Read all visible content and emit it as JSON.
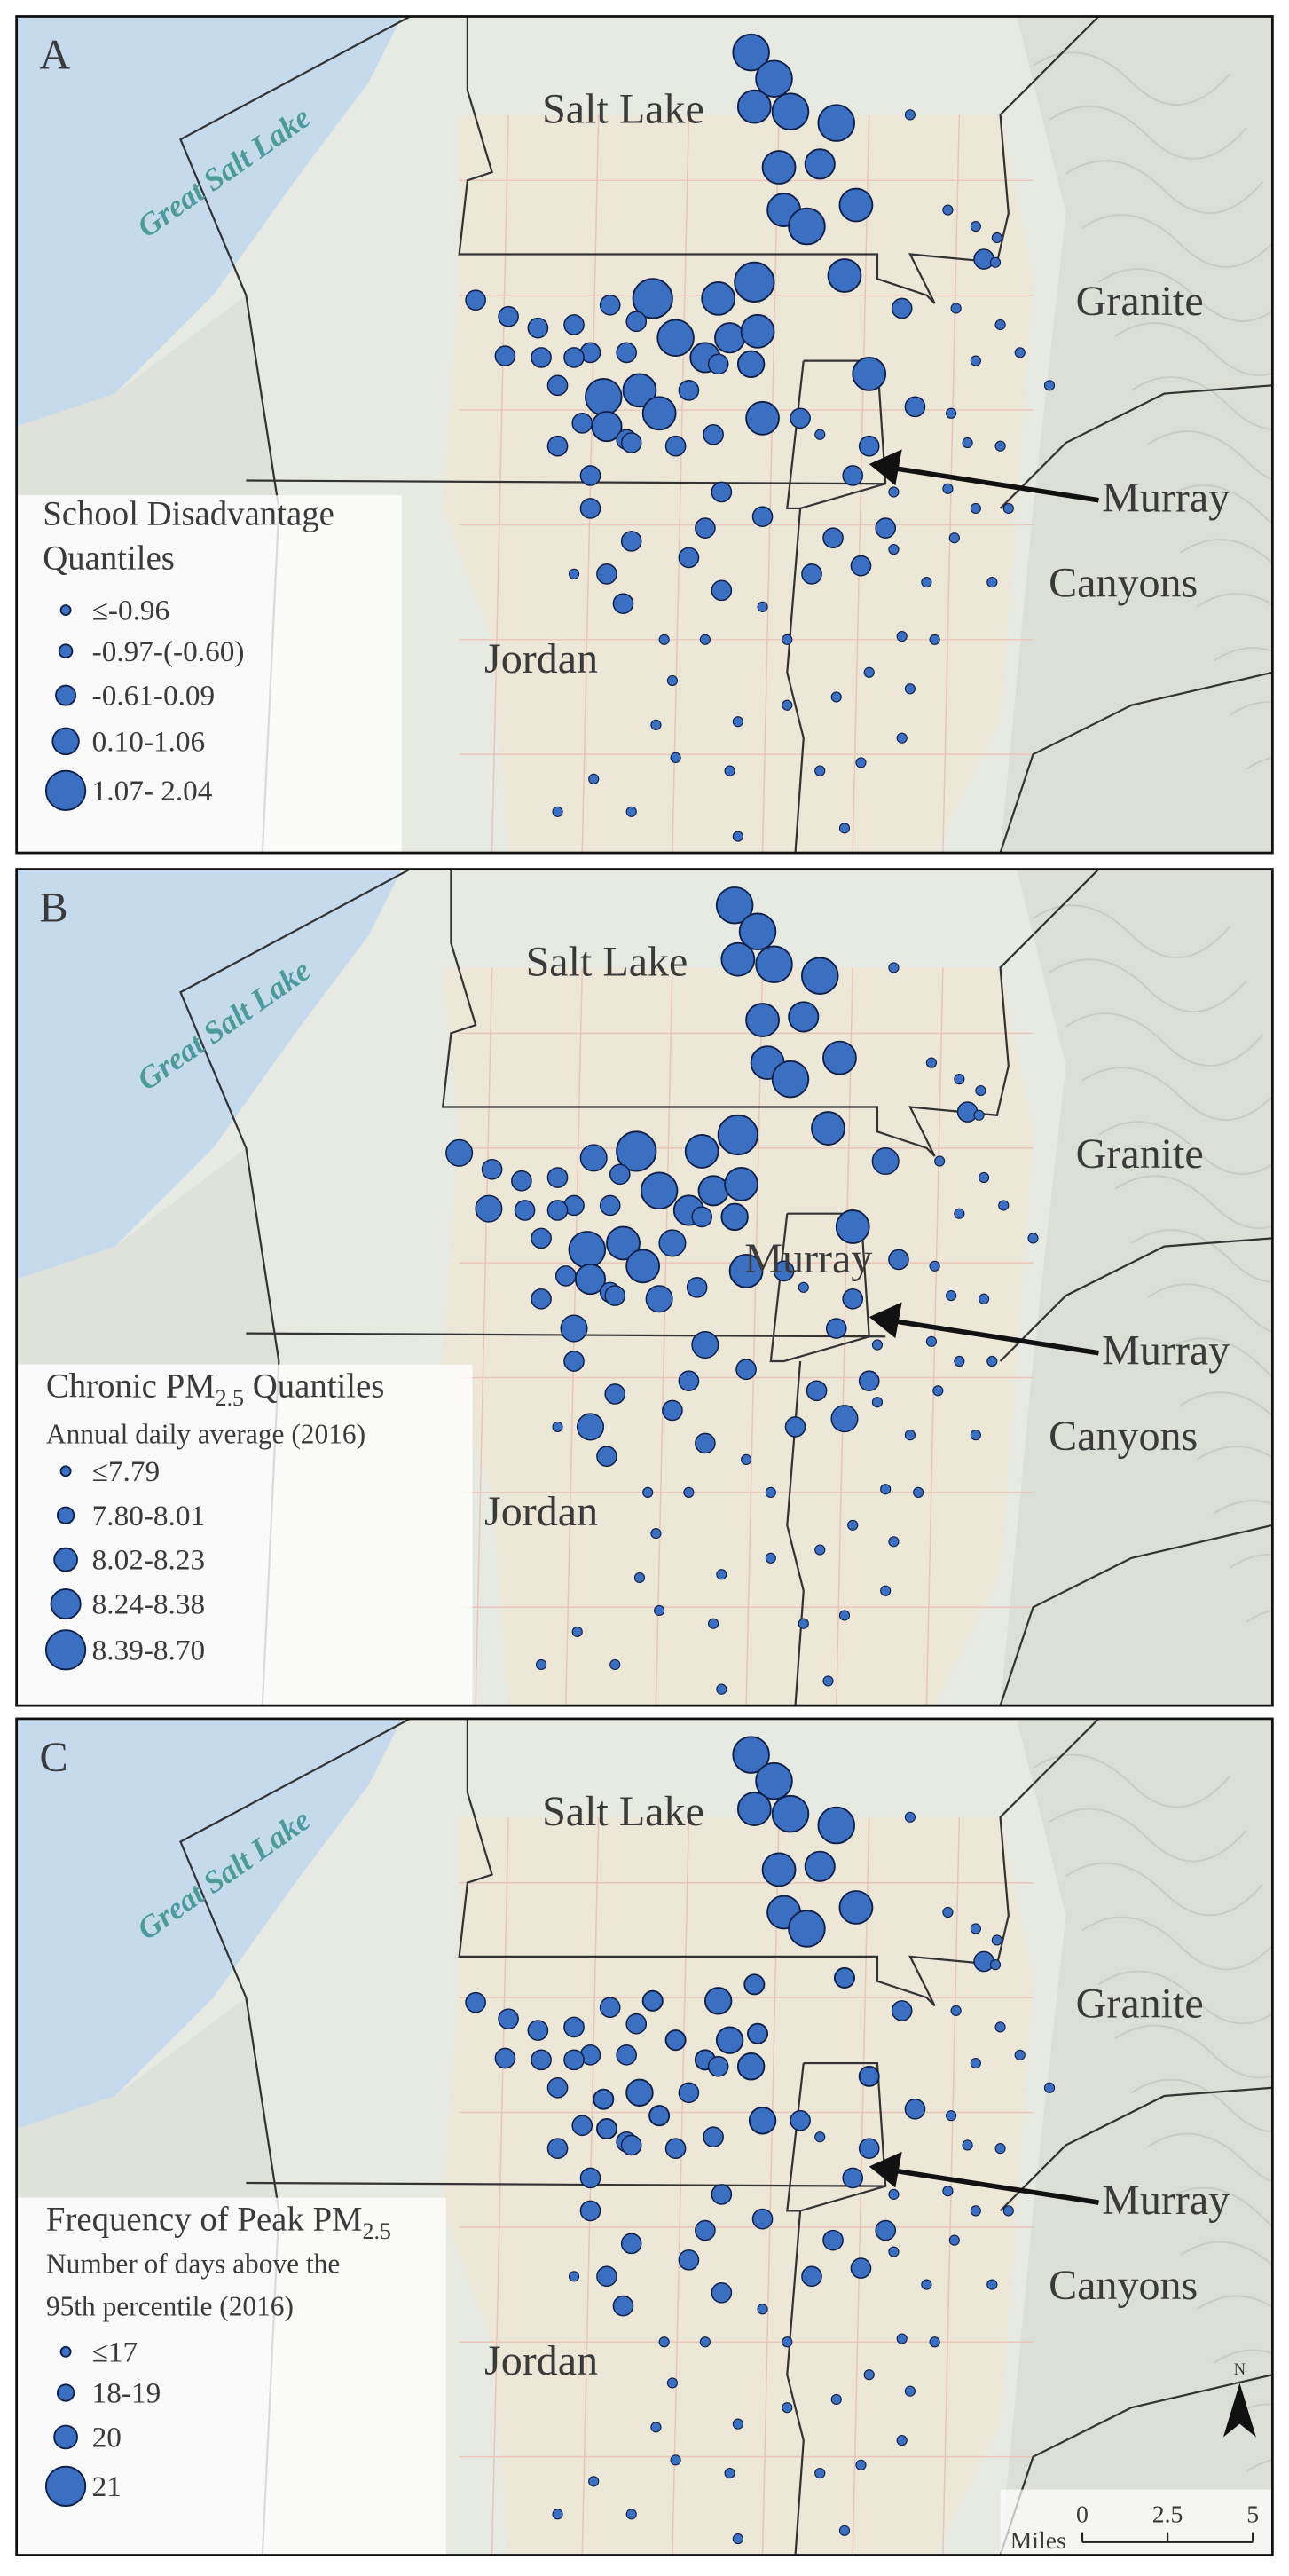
{
  "panels": [
    {
      "letter": "A",
      "districts": {
        "great_salt_lake": "Great Salt Lake",
        "salt_lake": "Salt Lake",
        "granite": "Granite",
        "murray": "Murray",
        "canyons": "Canyons",
        "jordan": "Jordan"
      },
      "legend": {
        "title_lines": [
          "School Disadvantage",
          "Quantiles"
        ],
        "items": [
          "≤-0.96",
          "-0.97-(-0.60)",
          "-0.61-0.09",
          "0.10-1.06",
          "1.07- 2.04"
        ]
      }
    },
    {
      "letter": "B",
      "districts": {
        "great_salt_lake": "Great Salt Lake",
        "salt_lake": "Salt Lake",
        "granite": "Granite",
        "murray": "Murray",
        "canyons": "Canyons",
        "jordan": "Jordan",
        "murray_inner": "Murray"
      },
      "legend": {
        "title": {
          "prefix": "Chronic PM",
          "sub": "2.5",
          "suffix": " Quantiles"
        },
        "subtitle_lines": [
          "Annual daily average (2016)"
        ],
        "items": [
          "≤7.79",
          "7.80-8.01",
          "8.02-8.23",
          "8.24-8.38",
          "8.39-8.70"
        ]
      }
    },
    {
      "letter": "C",
      "districts": {
        "great_salt_lake": "Great Salt Lake",
        "salt_lake": "Salt Lake",
        "granite": "Granite",
        "murray": "Murray",
        "canyons": "Canyons",
        "jordan": "Jordan"
      },
      "legend": {
        "title": {
          "prefix": "Frequency of Peak PM",
          "sub": "2.5"
        },
        "subtitle_lines": [
          "Number of days above the",
          "95th percentile (2016)"
        ],
        "items": [
          "≤17",
          "18-19",
          "20",
          "21"
        ]
      }
    }
  ],
  "scale_bar": {
    "unit": "Miles",
    "ticks": [
      0,
      2.5,
      5
    ]
  },
  "north": "N"
}
